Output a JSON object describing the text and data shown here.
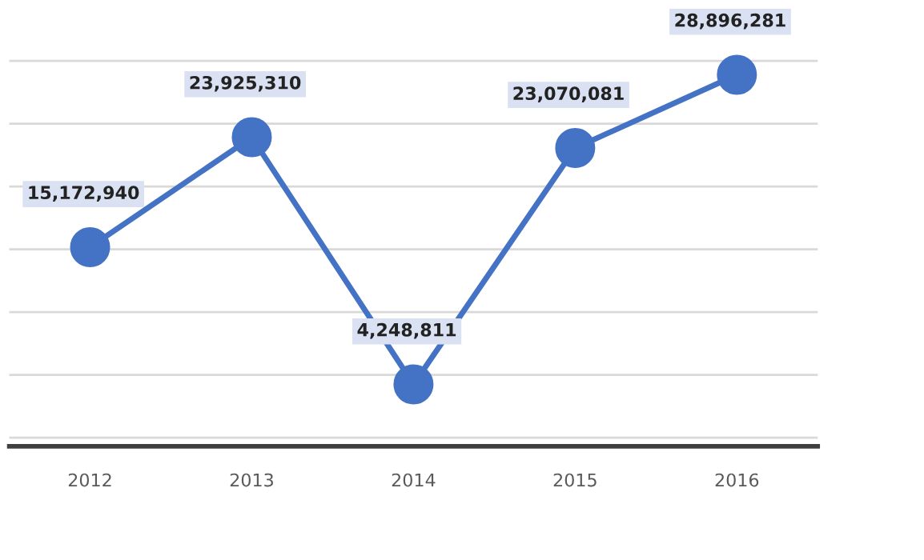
{
  "chart_data": {
    "type": "line",
    "categories": [
      "2012",
      "2013",
      "2014",
      "2015",
      "2016"
    ],
    "series": [
      {
        "color": "#4472c4",
        "values": [
          15172940,
          23925310,
          4248811,
          23070081,
          28896281
        ],
        "value_labels": [
          "15,172,940",
          "23,925,310",
          "4,248,811",
          "23,070,081",
          "28,896,281"
        ]
      }
    ],
    "grid": "y",
    "marker": "circle",
    "line_style": "solid"
  }
}
